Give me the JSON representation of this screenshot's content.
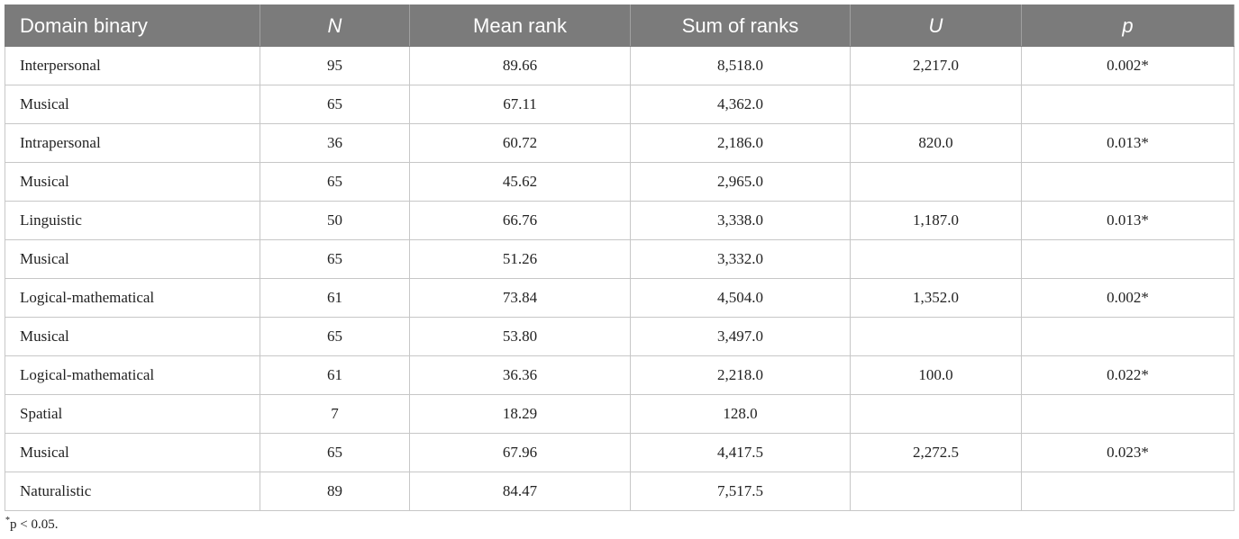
{
  "table": {
    "headers": [
      "Domain binary",
      "N",
      "Mean rank",
      "Sum of ranks",
      "U",
      "p"
    ],
    "rows": [
      [
        "Interpersonal",
        "95",
        "89.66",
        "8,518.0",
        "2,217.0",
        "0.002*"
      ],
      [
        "Musical",
        "65",
        "67.11",
        "4,362.0",
        "",
        ""
      ],
      [
        "Intrapersonal",
        "36",
        "60.72",
        "2,186.0",
        "820.0",
        "0.013*"
      ],
      [
        "Musical",
        "65",
        "45.62",
        "2,965.0",
        "",
        ""
      ],
      [
        "Linguistic",
        "50",
        "66.76",
        "3,338.0",
        "1,187.0",
        "0.013*"
      ],
      [
        "Musical",
        "65",
        "51.26",
        "3,332.0",
        "",
        ""
      ],
      [
        "Logical-mathematical",
        "61",
        "73.84",
        "4,504.0",
        "1,352.0",
        "0.002*"
      ],
      [
        "Musical",
        "65",
        "53.80",
        "3,497.0",
        "",
        ""
      ],
      [
        "Logical-mathematical",
        "61",
        "36.36",
        "2,218.0",
        "100.0",
        "0.022*"
      ],
      [
        "Spatial",
        "7",
        "18.29",
        "128.0",
        "",
        ""
      ],
      [
        "Musical",
        "65",
        "67.96",
        "4,417.5",
        "2,272.5",
        "0.023*"
      ],
      [
        "Naturalistic",
        "89",
        "84.47",
        "7,517.5",
        "",
        ""
      ]
    ]
  },
  "footnote": {
    "mark": "*",
    "text": "p < 0.05."
  }
}
